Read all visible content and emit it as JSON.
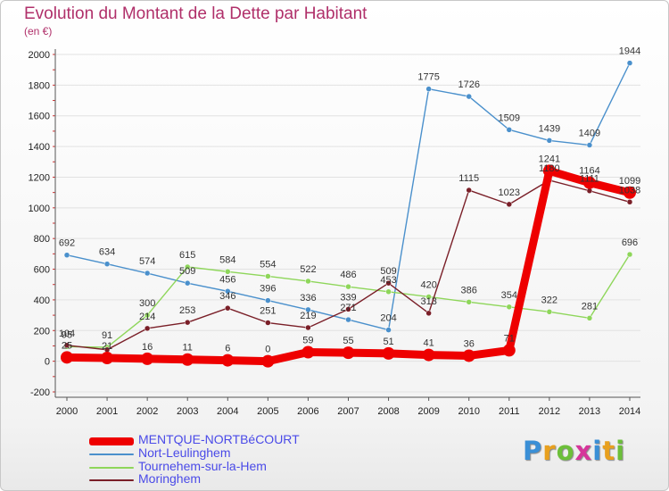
{
  "header": {
    "title": "Evolution du Montant de la Dette par Habitant",
    "subtitle": "(en €)"
  },
  "logo": {
    "text": "Proxiti",
    "letter_colors": [
      "#3a8fd6",
      "#e8a01e",
      "#6cbf3a",
      "#d6359a",
      "#3a8fd6",
      "#e8a01e",
      "#6cbf3a"
    ]
  },
  "chart_data": {
    "type": "line",
    "title": "Evolution du Montant de la Dette par Habitant",
    "subtitle": "(en €)",
    "xlabel": "",
    "ylabel": "",
    "x": [
      "2000",
      "2001",
      "2002",
      "2003",
      "2004",
      "2005",
      "2006",
      "2007",
      "2008",
      "2009",
      "2010",
      "2011",
      "2012",
      "2013",
      "2014"
    ],
    "ylim": [
      -200,
      2000
    ],
    "yticks": [
      "-200",
      "0",
      "200",
      "400",
      "600",
      "800",
      "1000",
      "1200",
      "1400",
      "1600",
      "1800",
      "2000"
    ],
    "grid": "horizontal",
    "legend_position": "bottom-left",
    "series": [
      {
        "name": "MENTQUE-NORTBéCOURT",
        "color": "#ee0000",
        "values": [
          25,
          21,
          16,
          11,
          6,
          0,
          59,
          55,
          51,
          41,
          36,
          71,
          1241,
          1164,
          1099
        ],
        "labels": [
          "25",
          "21",
          "16",
          "11",
          "6",
          "0",
          "59",
          "55",
          "51",
          "41",
          "36",
          "71",
          "1241",
          "1164",
          "1099"
        ]
      },
      {
        "name": "Nort-Leulinghem",
        "color": "#4a90cc",
        "values": [
          692,
          634,
          574,
          509,
          456,
          396,
          336,
          271,
          204,
          1775,
          1726,
          1509,
          1439,
          1409,
          1944
        ],
        "labels": [
          "692",
          "634",
          "574",
          "509",
          "456",
          "396",
          "336",
          "271",
          "204",
          "1775",
          "1726",
          "1509",
          "1439",
          "1409",
          "1944"
        ]
      },
      {
        "name": "Tournehem-sur-la-Hem",
        "color": "#8ed65a",
        "values": [
          95,
          91,
          300,
          615,
          584,
          554,
          522,
          486,
          453,
          420,
          386,
          354,
          322,
          281,
          696
        ],
        "labels": [
          "95",
          "91",
          "300",
          "615",
          "584",
          "554",
          "522",
          "486",
          "453",
          "420",
          "386",
          "354",
          "322",
          "281",
          "696"
        ]
      },
      {
        "name": "Moringhem",
        "color": "#7a1f28",
        "values": [
          104,
          75,
          214,
          253,
          346,
          251,
          219,
          339,
          509,
          313,
          1115,
          1023,
          1180,
          1111,
          1038
        ],
        "labels": [
          "104",
          "",
          "214",
          "253",
          "346",
          "251",
          "219",
          "339",
          "509",
          "313",
          "1115",
          "1023",
          "1180",
          "1111",
          "1038"
        ]
      }
    ]
  }
}
